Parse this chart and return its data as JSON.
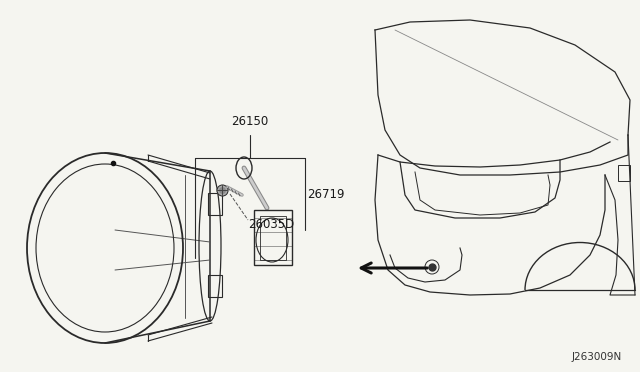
{
  "bg_color": "#f5f5f0",
  "line_color": "#2a2a2a",
  "text_color": "#1a1a1a",
  "diagram_code": "J263009N",
  "figsize": [
    6.4,
    3.72
  ],
  "dpi": 100,
  "xlim": [
    0,
    640
  ],
  "ylim": [
    0,
    372
  ]
}
